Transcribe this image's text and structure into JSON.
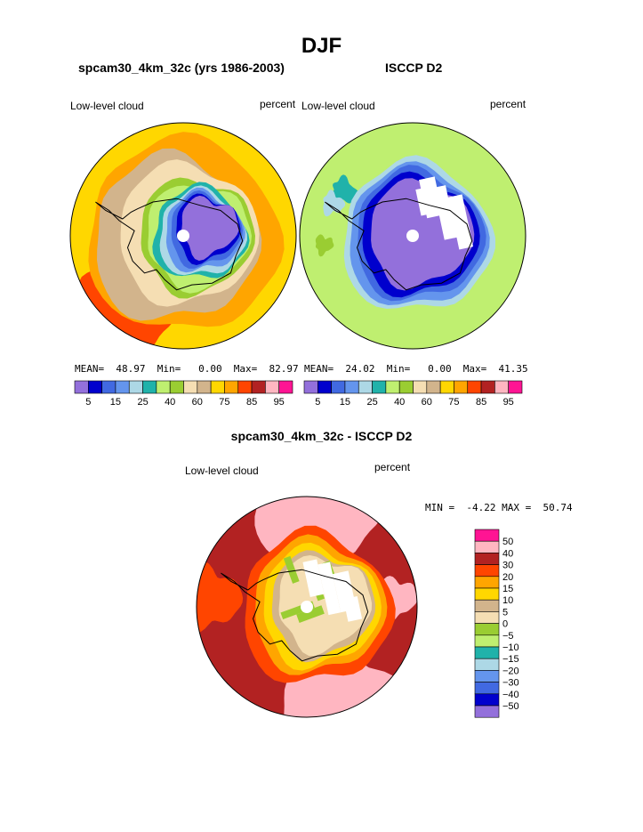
{
  "figure": {
    "title": "DJF"
  },
  "panels": [
    {
      "title": "spcam30_4km_32c (yrs 1986-2003)",
      "label": "Low-level cloud",
      "units": "percent",
      "stats": "MEAN=  48.97  Min=   0.00  Max=  82.97"
    },
    {
      "title": "ISCCP D2",
      "label": "Low-level cloud",
      "units": "percent",
      "stats": "MEAN=  24.02  Min=   0.00  Max=  41.35"
    }
  ],
  "difference": {
    "title": "spcam30_4km_32c - ISCCP D2",
    "label": "Low-level cloud",
    "units": "percent",
    "minmax": "MIN =  -4.22 MAX =  50.74"
  },
  "chart_data": [
    {
      "type": "heatmap",
      "projection": "polar-stereographic-south",
      "title": "spcam30_4km_32c (yrs 1986-2003)",
      "variable": "Low-level cloud",
      "units": "percent",
      "mean": 48.97,
      "min": 0.0,
      "max": 82.97,
      "levels": [
        5,
        10,
        15,
        20,
        25,
        30,
        40,
        50,
        60,
        70,
        75,
        80,
        85,
        90,
        95
      ],
      "level_labels": [
        "5",
        "15",
        "25",
        "40",
        "60",
        "75",
        "85",
        "95"
      ],
      "colors": [
        "#9370db",
        "#0000cd",
        "#4169e1",
        "#6495ed",
        "#add8e6",
        "#20b2aa",
        "#bfef70",
        "#9acd32",
        "#f5deb3",
        "#d2b48c",
        "#ffd700",
        "#ffa500",
        "#ff4500",
        "#b22222",
        "#ffb6c1",
        "#ff1493"
      ]
    },
    {
      "type": "heatmap",
      "projection": "polar-stereographic-south",
      "title": "ISCCP D2",
      "variable": "Low-level cloud",
      "units": "percent",
      "mean": 24.02,
      "min": 0.0,
      "max": 41.35,
      "levels": [
        5,
        10,
        15,
        20,
        25,
        30,
        40,
        50,
        60,
        70,
        75,
        80,
        85,
        90,
        95
      ],
      "level_labels": [
        "5",
        "15",
        "25",
        "40",
        "60",
        "75",
        "85",
        "95"
      ],
      "colors": [
        "#9370db",
        "#0000cd",
        "#4169e1",
        "#6495ed",
        "#add8e6",
        "#20b2aa",
        "#bfef70",
        "#9acd32",
        "#f5deb3",
        "#d2b48c",
        "#ffd700",
        "#ffa500",
        "#ff4500",
        "#b22222",
        "#ffb6c1",
        "#ff1493"
      ]
    },
    {
      "type": "heatmap",
      "projection": "polar-stereographic-south",
      "title": "spcam30_4km_32c - ISCCP D2",
      "variable": "Low-level cloud",
      "units": "percent",
      "min": -4.22,
      "max": 50.74,
      "levels": [
        50,
        40,
        30,
        20,
        15,
        10,
        5,
        0,
        -5,
        -10,
        -15,
        -20,
        -30,
        -40,
        -50
      ],
      "level_labels": [
        "50",
        "40",
        "30",
        "20",
        "15",
        "10",
        "5",
        "0",
        "−5",
        "−10",
        "−15",
        "−20",
        "−30",
        "−40",
        "−50"
      ],
      "colors": [
        "#ff1493",
        "#ffb6c1",
        "#b22222",
        "#ff4500",
        "#ffa500",
        "#ffd700",
        "#d2b48c",
        "#f5deb3",
        "#9acd32",
        "#bfef70",
        "#20b2aa",
        "#add8e6",
        "#6495ed",
        "#4169e1",
        "#0000cd",
        "#9370db"
      ]
    }
  ]
}
